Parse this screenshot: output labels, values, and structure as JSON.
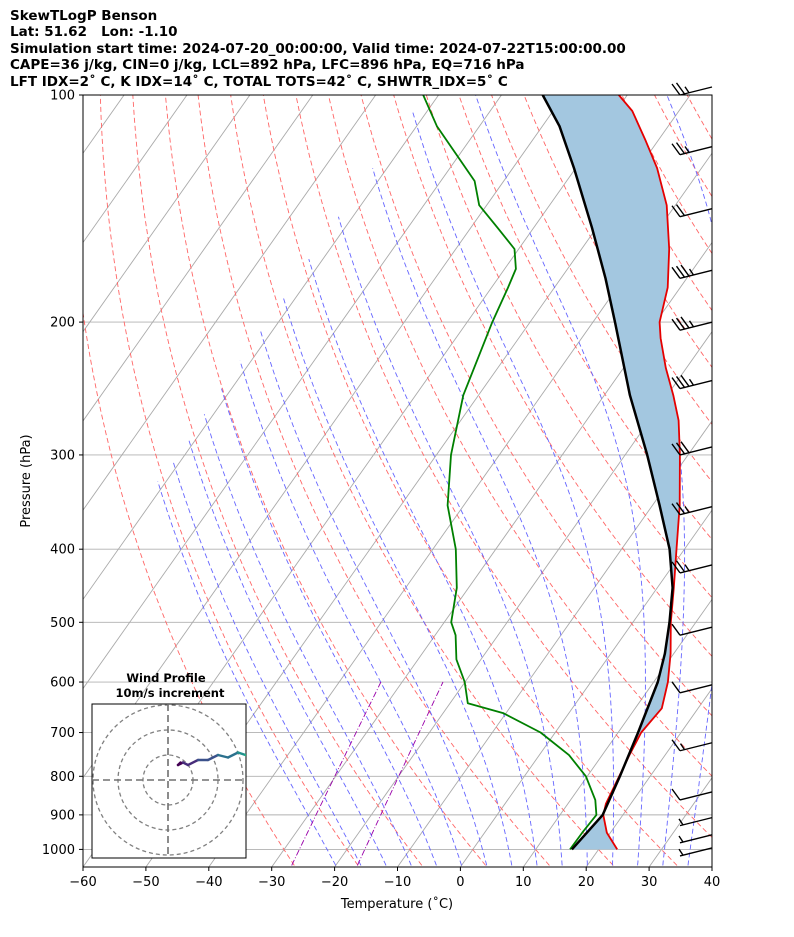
{
  "header": {
    "line1": "SkewTLogP Benson",
    "line2": "Lat: 51.62   Lon: -1.10",
    "line3": "Simulation start time: 2024-07-20_00:00:00, Valid time: 2024-07-22T15:00:00.00",
    "line4": "CAPE=36 j/kg, CIN=0 j/kg, LCL=892 hPa, LFC=896 hPa, EQ=716 hPa",
    "line5": "LFT IDX=2˚ C, K IDX=14˚ C, TOTAL TOTS=42˚ C, SHWTR_IDX=5˚ C"
  },
  "chart_data": {
    "type": "line",
    "skew_t": true,
    "xlabel": "Temperature (˚C)",
    "ylabel": "Pressure (hPa)",
    "xlim": [
      -60,
      40
    ],
    "ylim": [
      1040,
      100
    ],
    "y_scale": "log",
    "grid": true,
    "x_ticks": [
      -60,
      -50,
      -40,
      -30,
      -20,
      -10,
      0,
      10,
      20,
      30,
      40
    ],
    "x_tick_labels": [
      "−60",
      "−50",
      "−40",
      "−30",
      "−20",
      "−10",
      "0",
      "10",
      "20",
      "30",
      "40"
    ],
    "y_ticks": [
      1000,
      900,
      800,
      700,
      600,
      500,
      400,
      300,
      200,
      100
    ],
    "y_tick_labels": [
      "1000",
      "900",
      "800",
      "700",
      "600",
      "500",
      "400",
      "300",
      "200",
      "100"
    ],
    "series": [
      {
        "role": "temperature",
        "color": "#e50000",
        "points": [
          [
            1000,
            23.0
          ],
          [
            950,
            19.5
          ],
          [
            900,
            17.0
          ],
          [
            870,
            16.2
          ],
          [
            800,
            15.3
          ],
          [
            750,
            14.6
          ],
          [
            700,
            14.0
          ],
          [
            650,
            14.6
          ],
          [
            600,
            12.7
          ],
          [
            550,
            10.0
          ],
          [
            500,
            6.6
          ],
          [
            450,
            3.3
          ],
          [
            400,
            -0.5
          ],
          [
            350,
            -4.8
          ],
          [
            300,
            -10.3
          ],
          [
            270,
            -14.3
          ],
          [
            250,
            -17.9
          ],
          [
            230,
            -22.1
          ],
          [
            210,
            -26.2
          ],
          [
            200,
            -28.1
          ],
          [
            180,
            -30.6
          ],
          [
            160,
            -34.6
          ],
          [
            140,
            -39.8
          ],
          [
            125,
            -45.4
          ],
          [
            115,
            -50.2
          ],
          [
            105,
            -55.6
          ],
          [
            100,
            -59.5
          ]
        ]
      },
      {
        "role": "dewpoint",
        "color": "#008000",
        "points": [
          [
            1000,
            15.5
          ],
          [
            950,
            15.6
          ],
          [
            900,
            15.9
          ],
          [
            860,
            14.1
          ],
          [
            800,
            10.0
          ],
          [
            750,
            5.0
          ],
          [
            700,
            -2.0
          ],
          [
            660,
            -10.0
          ],
          [
            640,
            -16.8
          ],
          [
            600,
            -19.6
          ],
          [
            560,
            -23.4
          ],
          [
            520,
            -26.2
          ],
          [
            500,
            -28.3
          ],
          [
            450,
            -31.2
          ],
          [
            400,
            -35.6
          ],
          [
            350,
            -41.7
          ],
          [
            300,
            -46.7
          ],
          [
            250,
            -51.3
          ],
          [
            200,
            -54.7
          ],
          [
            180,
            -56.0
          ],
          [
            170,
            -56.8
          ],
          [
            160,
            -59.2
          ],
          [
            150,
            -64.2
          ],
          [
            140,
            -69.6
          ],
          [
            130,
            -73.0
          ],
          [
            110,
            -85.0
          ],
          [
            100,
            -90.6
          ]
        ]
      },
      {
        "role": "parcel",
        "color": "#000000",
        "points": [
          [
            1000,
            15.8
          ],
          [
            900,
            16.9
          ],
          [
            800,
            15.4
          ],
          [
            700,
            13.5
          ],
          [
            600,
            11.1
          ],
          [
            550,
            9.1
          ],
          [
            500,
            6.4
          ],
          [
            450,
            3.1
          ],
          [
            400,
            -1.6
          ],
          [
            350,
            -8.0
          ],
          [
            300,
            -15.5
          ],
          [
            250,
            -24.8
          ],
          [
            200,
            -35.2
          ],
          [
            175,
            -41.5
          ],
          [
            150,
            -49.2
          ],
          [
            125,
            -58.6
          ],
          [
            110,
            -65.5
          ],
          [
            100,
            -71.6
          ]
        ]
      }
    ],
    "cape_shading": {
      "color": "#a3c7e0",
      "between": [
        "parcel",
        "temperature"
      ]
    },
    "reference_lines": [
      {
        "name": "isotherms",
        "color": "#aaaaaa",
        "style": "solid"
      },
      {
        "name": "dry-adiabats",
        "color": "#ff6666",
        "style": "dashed"
      },
      {
        "name": "moist-adiabats",
        "color": "#6666ff",
        "style": "dashed"
      },
      {
        "name": "mixing-ratio",
        "color": "#9900aa",
        "style": "dashdot"
      }
    ],
    "wind_barbs": {
      "pressures": [
        100,
        120,
        145,
        175,
        205,
        245,
        300,
        360,
        430,
        520,
        620,
        740,
        860,
        930,
        980,
        1020
      ],
      "speeds_kt": [
        25,
        25,
        20,
        35,
        35,
        35,
        30,
        25,
        25,
        10,
        10,
        15,
        10,
        5,
        5,
        5
      ],
      "color": "#000000"
    },
    "inset": {
      "title_line1": "Wind Profile",
      "title_line2": "10m/s increment",
      "ring_speeds": [
        10,
        20,
        30
      ],
      "hodograph_u": [
        5,
        4,
        6,
        8,
        12,
        16,
        20,
        24,
        28,
        31,
        34,
        36,
        37,
        38,
        39,
        41,
        45
      ],
      "hodograph_v": [
        7,
        6,
        7,
        6,
        8,
        8,
        10,
        9,
        11,
        10,
        10,
        11,
        11,
        9,
        10,
        11,
        9
      ],
      "colormap": "viridis"
    }
  }
}
